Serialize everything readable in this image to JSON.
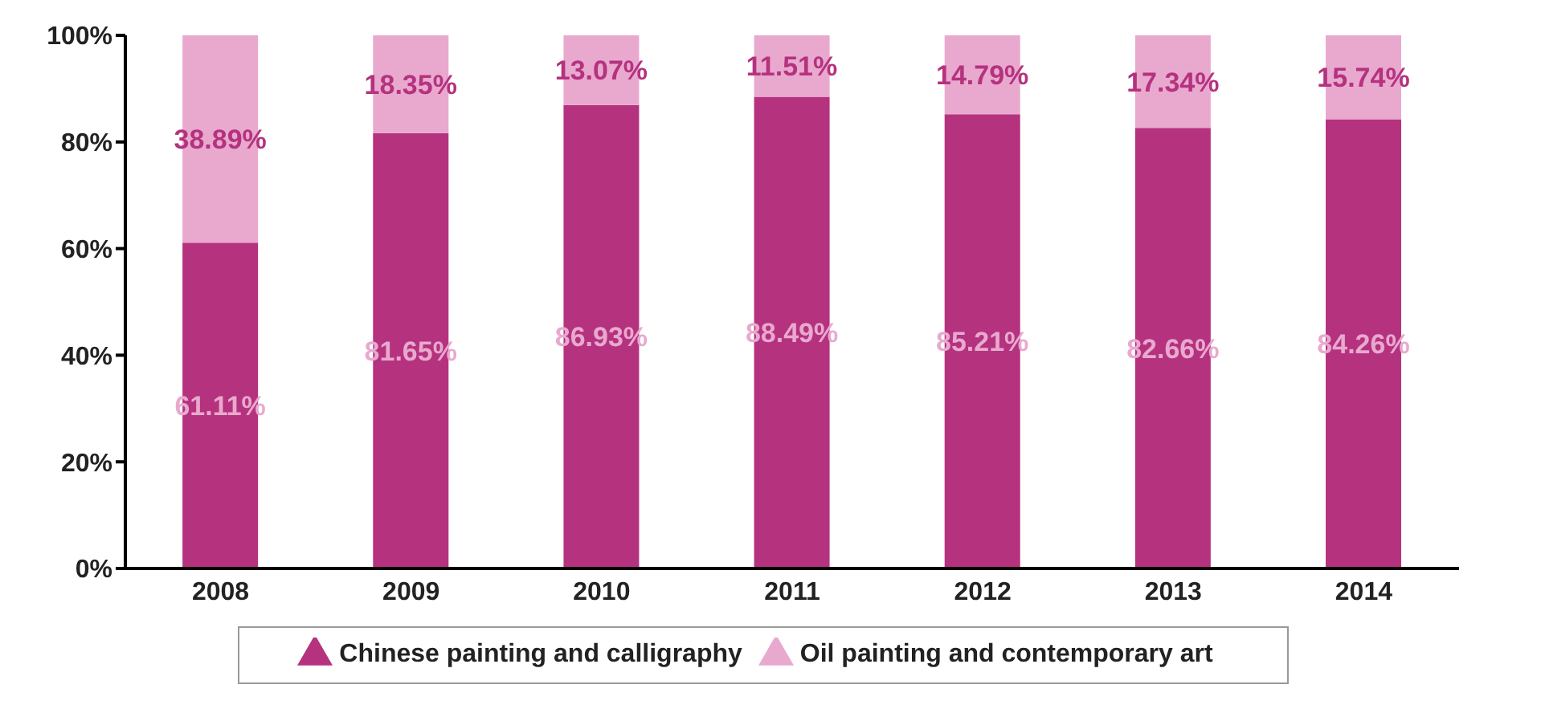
{
  "chart_data": {
    "type": "bar",
    "stacked": true,
    "categories": [
      "2008",
      "2009",
      "2010",
      "2011",
      "2012",
      "2013",
      "2014"
    ],
    "series": [
      {
        "name": "Chinese painting and calligraphy",
        "color": "#b5327f",
        "values": [
          61.11,
          81.65,
          86.93,
          88.49,
          85.21,
          82.66,
          84.26
        ],
        "value_labels": [
          "61.11%",
          "81.65%",
          "86.93%",
          "88.49%",
          "85.21%",
          "82.66%",
          "84.26%"
        ]
      },
      {
        "name": "Oil painting and contemporary art",
        "color": "#e9a9cf",
        "values": [
          38.89,
          18.35,
          13.07,
          11.51,
          14.79,
          17.34,
          15.74
        ],
        "value_labels": [
          "38.89%",
          "18.35%",
          "13.07%",
          "11.51%",
          "14.79%",
          "17.34%",
          "15.74%"
        ]
      }
    ],
    "ylim": [
      0,
      100
    ],
    "yticks": [
      {
        "value": 0,
        "label": "0%"
      },
      {
        "value": 20,
        "label": "20%"
      },
      {
        "value": 40,
        "label": "40%"
      },
      {
        "value": 60,
        "label": "60%"
      },
      {
        "value": 80,
        "label": "80%"
      },
      {
        "value": 100,
        "label": "100%"
      }
    ],
    "grid": false,
    "legend": "bottom"
  }
}
